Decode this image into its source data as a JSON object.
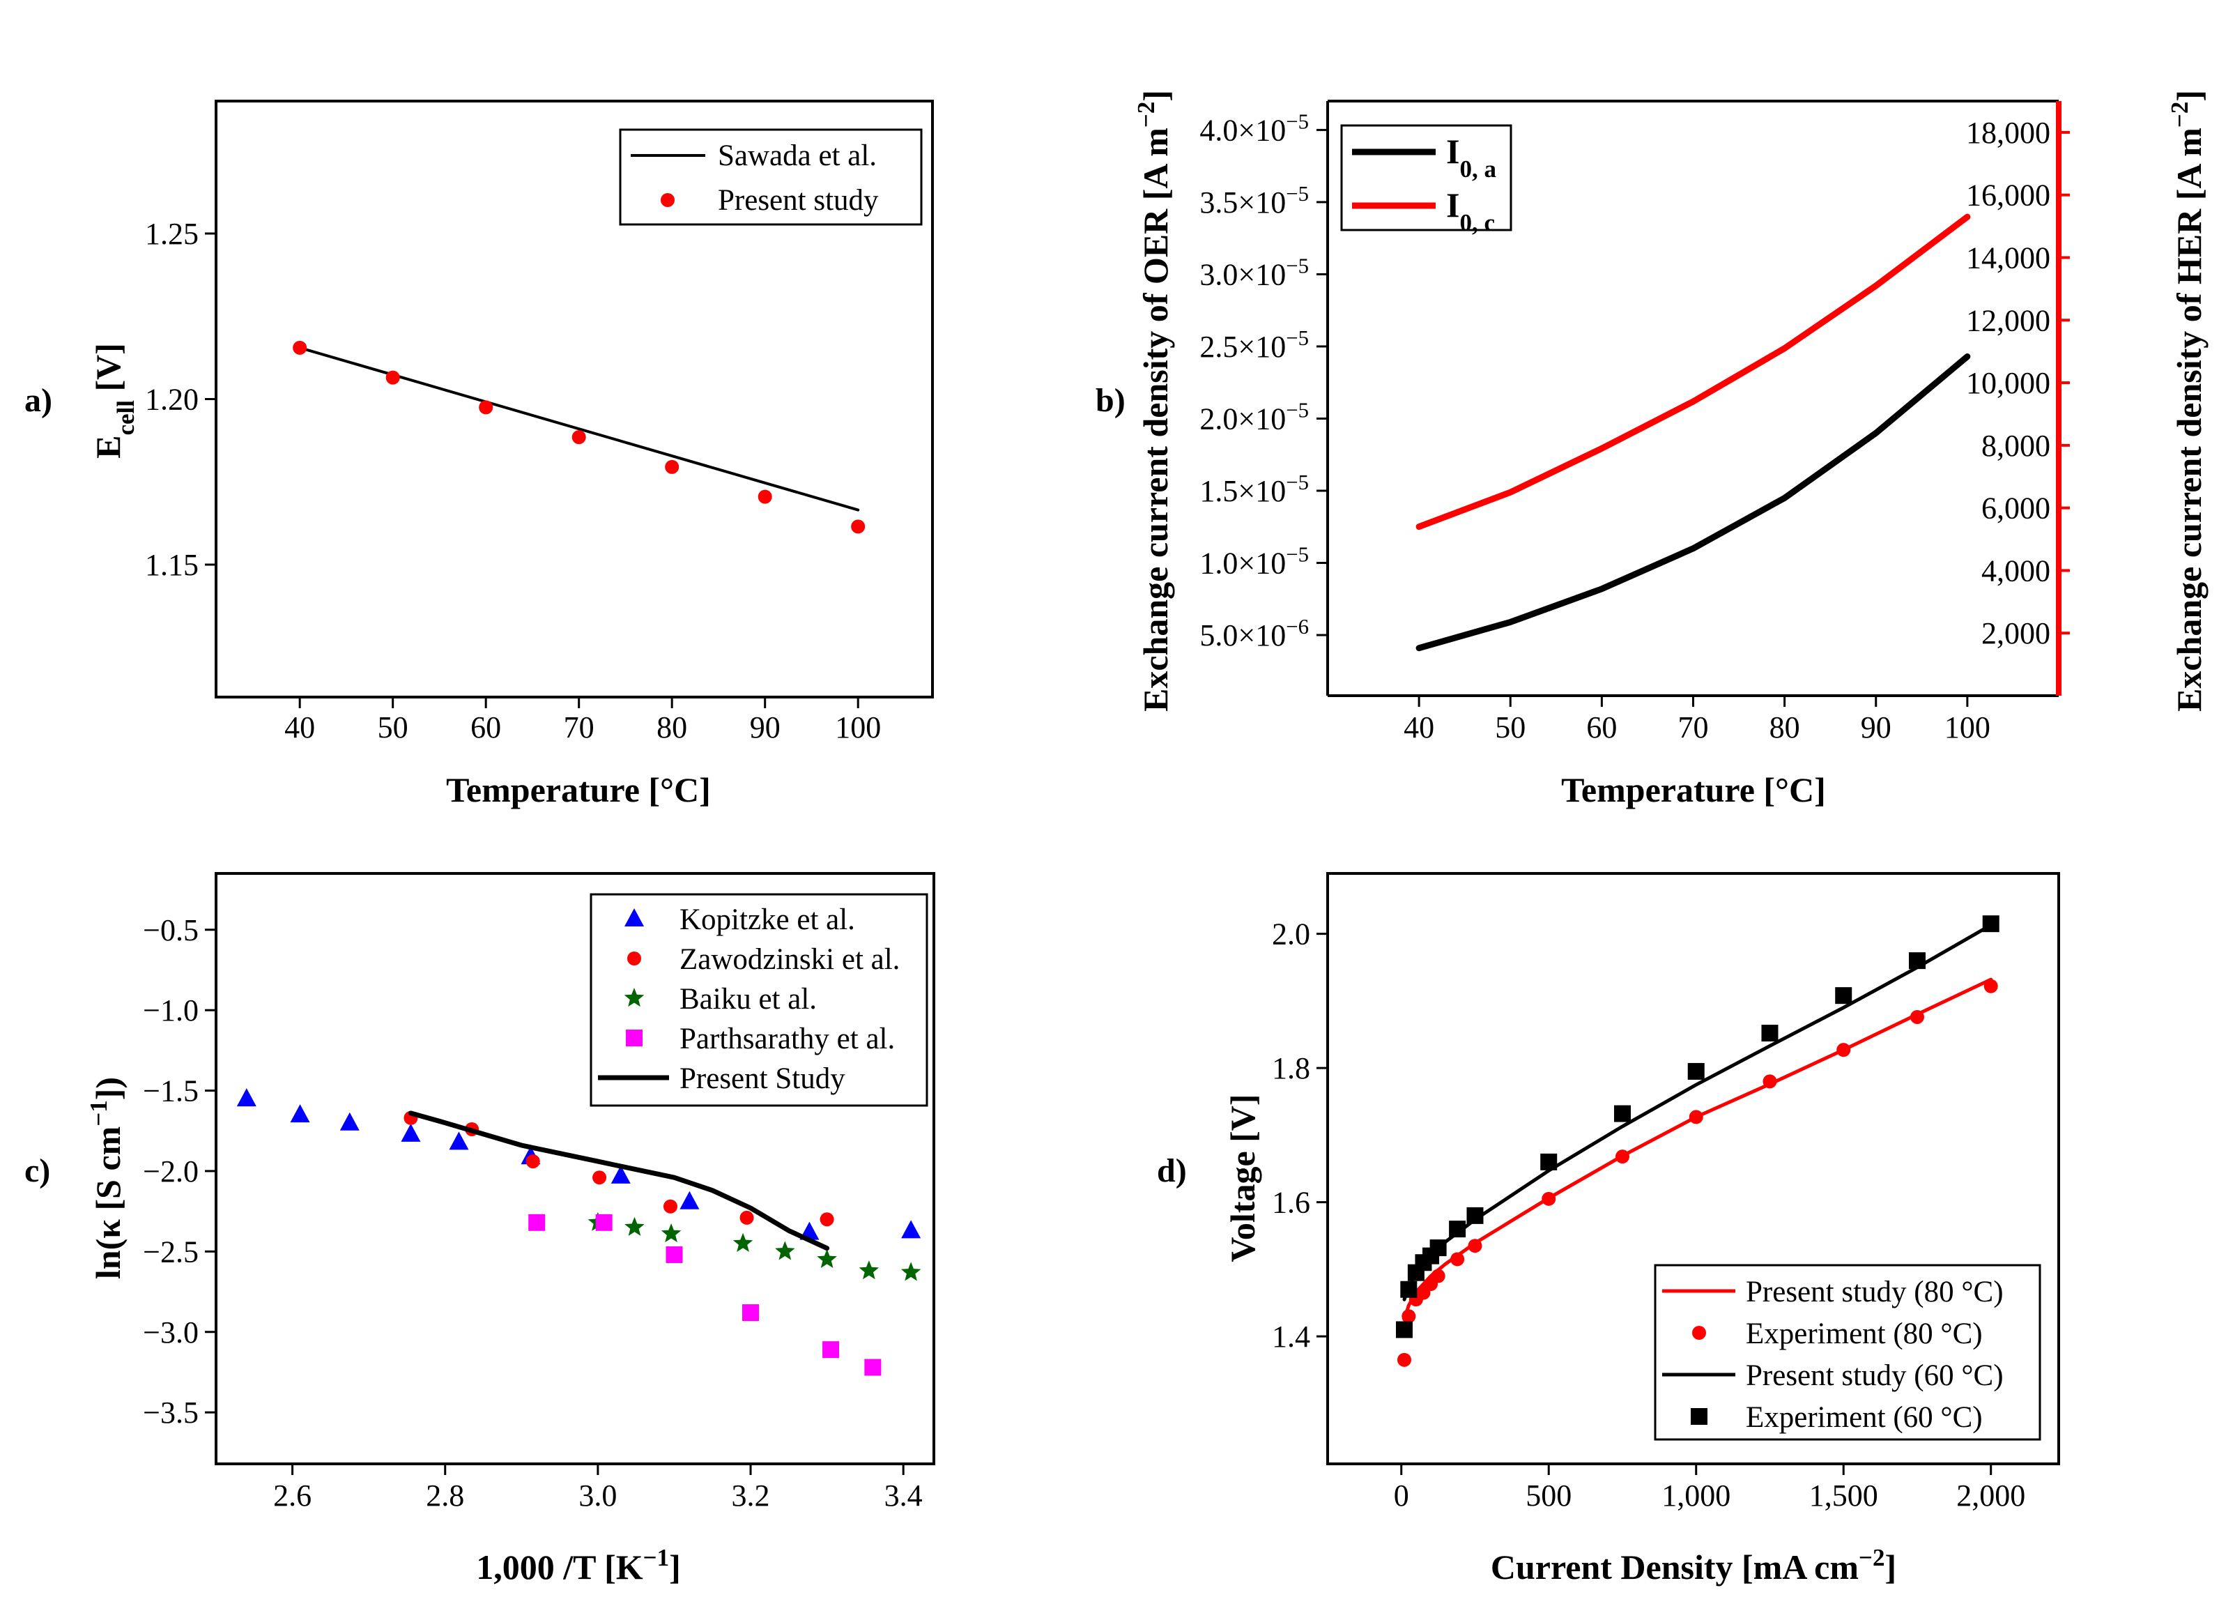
{
  "chart_data": [
    {
      "id": "a",
      "panel_label": "a)",
      "type": "line",
      "xlabel": "Temperature [°C]",
      "ylabel_main": "E",
      "ylabel_sub": "cell",
      "ylabel_unit": " [V]",
      "xlim": [
        31,
        108
      ],
      "ylim": [
        1.11,
        1.29
      ],
      "xticks": [
        40,
        50,
        60,
        70,
        80,
        90,
        100
      ],
      "xtick_labels": [
        "40",
        "50",
        "60",
        "70",
        "80",
        "90",
        "100"
      ],
      "yticks": [
        1.15,
        1.2,
        1.25
      ],
      "ytick_labels": [
        "1.15",
        "1.20",
        "1.25"
      ],
      "legend": [
        "Sawada et al.",
        "Present study"
      ],
      "series": [
        {
          "name": "Sawada et al.",
          "style": "line",
          "color": "#000000",
          "x": [
            40,
            100
          ],
          "y": [
            1.2155,
            1.1665
          ]
        },
        {
          "name": "Present study",
          "style": "circle",
          "color": "#ff0000",
          "x": [
            40,
            50,
            60,
            70,
            80,
            90,
            100
          ],
          "y": [
            1.2155,
            1.2065,
            1.1975,
            1.1885,
            1.1795,
            1.1705,
            1.1615
          ]
        }
      ]
    },
    {
      "id": "b",
      "panel_label": "b)",
      "type": "line",
      "xlabel": "Temperature [°C]",
      "ylabel_left": "Exchange current density of OER [A m",
      "ylabel_left_sup": "−2",
      "ylabel_left_end": "]",
      "ylabel_right": "Exchange current density of HER [A m",
      "ylabel_right_sup": "−2",
      "ylabel_right_end": "]",
      "xlim": [
        30,
        110
      ],
      "ylim_left": [
        8e-07,
        4.2e-05
      ],
      "ylim_right": [
        0,
        19000
      ],
      "xticks": [
        40,
        50,
        60,
        70,
        80,
        90,
        100
      ],
      "xtick_labels": [
        "40",
        "50",
        "60",
        "70",
        "80",
        "90",
        "100"
      ],
      "yticks_left": [
        5e-06,
        1e-05,
        1.5e-05,
        2e-05,
        2.5e-05,
        3e-05,
        3.5e-05,
        4e-05
      ],
      "ytick_left_mant": [
        "5.0×10",
        "1.0×10",
        "1.5×10",
        "2.0×10",
        "2.5×10",
        "3.0×10",
        "3.5×10",
        "4.0×10"
      ],
      "ytick_left_exp": [
        "−6",
        "−5",
        "−5",
        "−5",
        "−5",
        "−5",
        "−5",
        "−5"
      ],
      "yticks_right": [
        2000,
        4000,
        6000,
        8000,
        10000,
        12000,
        14000,
        16000,
        18000
      ],
      "ytick_right_labels": [
        "2,000",
        "4,000",
        "6,000",
        "8,000",
        "10,000",
        "12,000",
        "14,000",
        "16,000",
        "18,000"
      ],
      "legend": [
        {
          "main": "I",
          "sub": "0, a",
          "color": "#000000"
        },
        {
          "main": "I",
          "sub": "0, c",
          "color": "#ff0000"
        }
      ],
      "series": [
        {
          "name": "I0,a",
          "axis": "left",
          "color": "#000000",
          "x": [
            40,
            50,
            60,
            70,
            80,
            90,
            100
          ],
          "y": [
            4.1e-06,
            5.9e-06,
            8.2e-06,
            1.1e-05,
            1.45e-05,
            1.9e-05,
            2.43e-05
          ]
        },
        {
          "name": "I0,c",
          "axis": "right",
          "color": "#ff0000",
          "x": [
            40,
            50,
            60,
            70,
            80,
            90,
            100
          ],
          "y": [
            5400,
            6500,
            7900,
            9400,
            11100,
            13100,
            15300
          ]
        }
      ]
    },
    {
      "id": "c",
      "panel_label": "c)",
      "type": "scatter",
      "xlabel_main": "1,000 /T [K",
      "xlabel_sup": "−1",
      "xlabel_end": "]",
      "ylabel_main": "ln(κ [S cm",
      "ylabel_sup": "−1",
      "ylabel_end": "])",
      "xlim": [
        2.5,
        3.44
      ],
      "ylim": [
        -3.82,
        -0.15
      ],
      "xticks": [
        2.6,
        2.8,
        3.0,
        3.2,
        3.4
      ],
      "xtick_labels": [
        "2.6",
        "2.8",
        "3.0",
        "3.2",
        "3.4"
      ],
      "yticks": [
        -3.5,
        -3.0,
        -2.5,
        -2.0,
        -1.5,
        -1.0,
        -0.5
      ],
      "ytick_labels": [
        "−3.5",
        "−3.0",
        "−2.5",
        "−2.0",
        "−1.5",
        "−1.0",
        "−0.5"
      ],
      "legend": [
        "Kopitzke et al.",
        "Zawodzinski et al.",
        "Baiku et al.",
        "Parthsarathy et al.",
        "Present Study"
      ],
      "series": [
        {
          "name": "Kopitzke et al.",
          "marker": "triangle",
          "color": "#0000ff",
          "x": [
            2.54,
            2.61,
            2.675,
            2.755,
            2.818,
            2.912,
            3.03,
            3.12,
            3.277,
            3.41
          ],
          "y": [
            -1.55,
            -1.65,
            -1.7,
            -1.77,
            -1.82,
            -1.91,
            -2.03,
            -2.19,
            -2.38,
            -2.37
          ]
        },
        {
          "name": "Zawodzinski et al.",
          "marker": "circle",
          "color": "#ff0000",
          "x": [
            2.755,
            2.835,
            2.915,
            3.002,
            3.095,
            3.195,
            3.3
          ],
          "y": [
            -1.67,
            -1.74,
            -1.94,
            -2.04,
            -2.22,
            -2.29,
            -2.3
          ]
        },
        {
          "name": "Baiku et al.",
          "marker": "star",
          "color": "#006400",
          "x": [
            3.0,
            3.048,
            3.096,
            3.19,
            3.245,
            3.3,
            3.355,
            3.41
          ],
          "y": [
            -2.32,
            -2.35,
            -2.39,
            -2.45,
            -2.5,
            -2.55,
            -2.62,
            -2.63
          ]
        },
        {
          "name": "Parthsarathy et al.",
          "marker": "square",
          "color": "#ff00ff",
          "x": [
            2.92,
            3.008,
            3.1,
            3.2,
            3.305,
            3.36
          ],
          "y": [
            -2.32,
            -2.32,
            -2.52,
            -2.88,
            -3.11,
            -3.22
          ]
        },
        {
          "name": "Present Study",
          "marker": "line",
          "color": "#000000",
          "x": [
            2.755,
            2.8,
            2.85,
            2.9,
            2.95,
            3.0,
            3.05,
            3.1,
            3.15,
            3.2,
            3.25,
            3.3
          ],
          "y": [
            -1.64,
            -1.7,
            -1.77,
            -1.84,
            -1.89,
            -1.94,
            -1.99,
            -2.04,
            -2.12,
            -2.23,
            -2.37,
            -2.48
          ]
        }
      ]
    },
    {
      "id": "d",
      "panel_label": "d)",
      "type": "scatter",
      "xlabel_main": "Current Density [mA cm",
      "xlabel_sup": "−2",
      "xlabel_end": "]",
      "ylabel": "Voltage [V]",
      "xlim": [
        -250,
        2230
      ],
      "ylim": [
        1.21,
        2.09
      ],
      "xticks": [
        0,
        500,
        1000,
        1500,
        2000
      ],
      "xtick_labels": [
        "0",
        "500",
        "1,000",
        "1,500",
        "2,000"
      ],
      "yticks": [
        1.4,
        1.6,
        1.8,
        2.0
      ],
      "ytick_labels": [
        "1.4",
        "1.6",
        "1.8",
        "2.0"
      ],
      "legend": [
        "Present study (80 °C)",
        "Experiment (80 °C)",
        "Present study (60 °C)",
        "Experiment (60 °C)"
      ],
      "series": [
        {
          "name": "Present study (80 °C)",
          "marker": "line",
          "color": "#ff0000",
          "x": [
            10,
            25,
            50,
            100,
            150,
            250,
            500,
            750,
            1000,
            1250,
            1500,
            1750,
            2000
          ],
          "y": [
            1.425,
            1.446,
            1.466,
            1.49,
            1.508,
            1.539,
            1.606,
            1.669,
            1.727,
            1.776,
            1.827,
            1.88,
            1.932
          ]
        },
        {
          "name": "Experiment (80 °C)",
          "marker": "circle",
          "color": "#ff0000",
          "x": [
            10,
            25,
            50,
            75,
            100,
            125,
            190,
            250,
            500,
            750,
            1000,
            1250,
            1500,
            1750,
            2000
          ],
          "y": [
            1.365,
            1.43,
            1.455,
            1.465,
            1.478,
            1.49,
            1.515,
            1.535,
            1.605,
            1.668,
            1.727,
            1.78,
            1.827,
            1.876,
            1.922
          ]
        },
        {
          "name": "Present study (60 °C)",
          "marker": "line",
          "color": "#000000",
          "x": [
            10,
            25,
            50,
            100,
            150,
            250,
            500,
            750,
            1000,
            1250,
            1500,
            1750,
            2000
          ],
          "y": [
            1.455,
            1.474,
            1.493,
            1.521,
            1.541,
            1.574,
            1.647,
            1.713,
            1.775,
            1.833,
            1.89,
            1.95,
            2.013
          ]
        },
        {
          "name": "Experiment (60 °C)",
          "marker": "square",
          "color": "#000000",
          "x": [
            10,
            25,
            50,
            75,
            100,
            125,
            190,
            250,
            500,
            750,
            1000,
            1250,
            1500,
            1750,
            2000
          ],
          "y": [
            1.41,
            1.47,
            1.495,
            1.51,
            1.52,
            1.532,
            1.56,
            1.58,
            1.66,
            1.732,
            1.795,
            1.852,
            1.908,
            1.96,
            2.015
          ]
        }
      ]
    }
  ]
}
